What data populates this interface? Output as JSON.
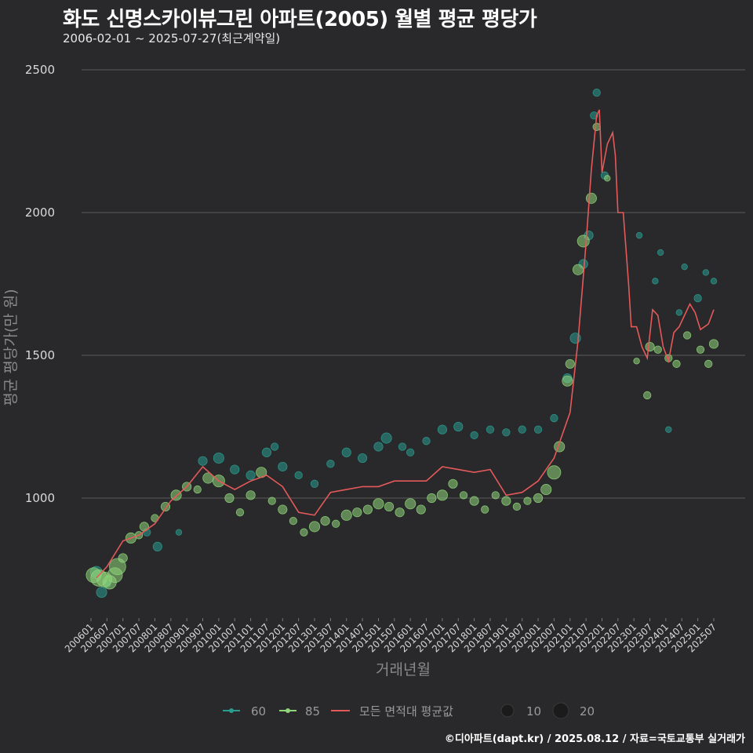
{
  "title": "화도 신명스카이뷰그린 아파트(2005) 월별 평균 평당가",
  "subtitle": "2006-02-01 ~ 2025-07-27(최근계약일)",
  "caption": "©디아파트(dapt.kr) / 2025.08.12 / 자료=국토교통부 실거래가",
  "colors": {
    "background": "#29282a",
    "grid": "#5c5c5c",
    "series_60": "#2a9d8f",
    "series_85": "#8fd67a",
    "avg_line": "#e45a5a"
  },
  "chart_data": {
    "type": "scatter",
    "title": "화도 신명스카이뷰그린 아파트(2005) 월별 평균 평당가",
    "xlabel": "거래년월",
    "ylabel": "평균 평당가(만 원)",
    "ylim": [
      600,
      2550
    ],
    "yticks": [
      1000,
      1500,
      2000,
      2500
    ],
    "xticks": [
      "200601",
      "200607",
      "200701",
      "200707",
      "200801",
      "200807",
      "200901",
      "200907",
      "201001",
      "201007",
      "201101",
      "201107",
      "201201",
      "201207",
      "201301",
      "201307",
      "201401",
      "201407",
      "201501",
      "201507",
      "201601",
      "201607",
      "201701",
      "201707",
      "201801",
      "201807",
      "201901",
      "201907",
      "202001",
      "202007",
      "202101",
      "202107",
      "202201",
      "202207",
      "202301",
      "202307",
      "202401",
      "202407",
      "202501",
      "202507"
    ],
    "legend": {
      "series": [
        {
          "name": "60",
          "type": "point"
        },
        {
          "name": "85",
          "type": "point"
        },
        {
          "name": "모든 면적대 평균값",
          "type": "line"
        }
      ],
      "sizes": [
        "10",
        "20"
      ]
    },
    "avg_line": {
      "name": "모든 면적대 평균값",
      "x": [
        "200603",
        "200607",
        "200701",
        "200707",
        "200801",
        "200807",
        "200901",
        "200907",
        "201001",
        "201007",
        "201101",
        "201107",
        "201201",
        "201207",
        "201301",
        "201307",
        "201401",
        "201407",
        "201501",
        "201507",
        "201601",
        "201607",
        "201701",
        "201707",
        "201801",
        "201807",
        "201901",
        "201907",
        "202001",
        "202007",
        "202101",
        "202104",
        "202107",
        "202109",
        "202111",
        "202112",
        "202201",
        "202203",
        "202205",
        "202206",
        "202207",
        "202209",
        "202211",
        "202212",
        "202302",
        "202304",
        "202306",
        "202308",
        "202310",
        "202312",
        "202402",
        "202404",
        "202406",
        "202408",
        "202410",
        "202412",
        "202502",
        "202505",
        "202507"
      ],
      "values": [
        720,
        760,
        850,
        870,
        910,
        990,
        1040,
        1110,
        1060,
        1030,
        1060,
        1080,
        1040,
        950,
        940,
        1020,
        1030,
        1040,
        1040,
        1060,
        1060,
        1060,
        1110,
        1100,
        1090,
        1100,
        1010,
        1020,
        1060,
        1140,
        1300,
        1550,
        1890,
        2150,
        2340,
        2360,
        2140,
        2240,
        2280,
        2200,
        2000,
        2000,
        1750,
        1600,
        1600,
        1530,
        1490,
        1660,
        1640,
        1530,
        1480,
        1580,
        1600,
        1640,
        1680,
        1650,
        1590,
        1610,
        1660
      ]
    },
    "series": [
      {
        "name": "60",
        "points": [
          {
            "x": "200603",
            "y": 740,
            "size": 8
          },
          {
            "x": "200605",
            "y": 670,
            "size": 7
          },
          {
            "x": "200607",
            "y": 700,
            "size": 5
          },
          {
            "x": "200710",
            "y": 880,
            "size": 5
          },
          {
            "x": "200802",
            "y": 830,
            "size": 6
          },
          {
            "x": "200810",
            "y": 880,
            "size": 4
          },
          {
            "x": "200907",
            "y": 1130,
            "size": 6
          },
          {
            "x": "201001",
            "y": 1140,
            "size": 7
          },
          {
            "x": "201007",
            "y": 1100,
            "size": 6
          },
          {
            "x": "201101",
            "y": 1080,
            "size": 6
          },
          {
            "x": "201107",
            "y": 1160,
            "size": 6
          },
          {
            "x": "201110",
            "y": 1180,
            "size": 5
          },
          {
            "x": "201201",
            "y": 1110,
            "size": 6
          },
          {
            "x": "201207",
            "y": 1080,
            "size": 5
          },
          {
            "x": "201301",
            "y": 1050,
            "size": 5
          },
          {
            "x": "201307",
            "y": 1120,
            "size": 5
          },
          {
            "x": "201401",
            "y": 1160,
            "size": 6
          },
          {
            "x": "201407",
            "y": 1140,
            "size": 6
          },
          {
            "x": "201501",
            "y": 1180,
            "size": 6
          },
          {
            "x": "201504",
            "y": 1210,
            "size": 7
          },
          {
            "x": "201510",
            "y": 1180,
            "size": 5
          },
          {
            "x": "201601",
            "y": 1160,
            "size": 5
          },
          {
            "x": "201607",
            "y": 1200,
            "size": 5
          },
          {
            "x": "201701",
            "y": 1240,
            "size": 6
          },
          {
            "x": "201707",
            "y": 1250,
            "size": 6
          },
          {
            "x": "201801",
            "y": 1220,
            "size": 5
          },
          {
            "x": "201807",
            "y": 1240,
            "size": 5
          },
          {
            "x": "201901",
            "y": 1230,
            "size": 5
          },
          {
            "x": "201907",
            "y": 1240,
            "size": 5
          },
          {
            "x": "202001",
            "y": 1240,
            "size": 5
          },
          {
            "x": "202007",
            "y": 1280,
            "size": 5
          },
          {
            "x": "202012",
            "y": 1420,
            "size": 6
          },
          {
            "x": "202103",
            "y": 1560,
            "size": 7
          },
          {
            "x": "202106",
            "y": 1820,
            "size": 6
          },
          {
            "x": "202108",
            "y": 1920,
            "size": 6
          },
          {
            "x": "202110",
            "y": 2340,
            "size": 5
          },
          {
            "x": "202111",
            "y": 2420,
            "size": 5
          },
          {
            "x": "202202",
            "y": 2130,
            "size": 5
          },
          {
            "x": "202303",
            "y": 1920,
            "size": 4
          },
          {
            "x": "202309",
            "y": 1760,
            "size": 4
          },
          {
            "x": "202311",
            "y": 1860,
            "size": 4
          },
          {
            "x": "202402",
            "y": 1240,
            "size": 4
          },
          {
            "x": "202406",
            "y": 1650,
            "size": 4
          },
          {
            "x": "202408",
            "y": 1810,
            "size": 4
          },
          {
            "x": "202501",
            "y": 1700,
            "size": 5
          },
          {
            "x": "202504",
            "y": 1790,
            "size": 4
          },
          {
            "x": "202507",
            "y": 1760,
            "size": 4
          }
        ]
      },
      {
        "name": "85",
        "points": [
          {
            "x": "200602",
            "y": 730,
            "size": 10
          },
          {
            "x": "200604",
            "y": 720,
            "size": 11
          },
          {
            "x": "200606",
            "y": 715,
            "size": 10
          },
          {
            "x": "200608",
            "y": 705,
            "size": 9
          },
          {
            "x": "200610",
            "y": 730,
            "size": 10
          },
          {
            "x": "200611",
            "y": 760,
            "size": 11
          },
          {
            "x": "200701",
            "y": 790,
            "size": 6
          },
          {
            "x": "200704",
            "y": 860,
            "size": 7
          },
          {
            "x": "200707",
            "y": 870,
            "size": 5
          },
          {
            "x": "200709",
            "y": 900,
            "size": 6
          },
          {
            "x": "200801",
            "y": 930,
            "size": 5
          },
          {
            "x": "200805",
            "y": 970,
            "size": 6
          },
          {
            "x": "200809",
            "y": 1010,
            "size": 7
          },
          {
            "x": "200901",
            "y": 1040,
            "size": 6
          },
          {
            "x": "200905",
            "y": 1030,
            "size": 5
          },
          {
            "x": "200909",
            "y": 1070,
            "size": 7
          },
          {
            "x": "201001",
            "y": 1060,
            "size": 8
          },
          {
            "x": "201005",
            "y": 1000,
            "size": 6
          },
          {
            "x": "201009",
            "y": 950,
            "size": 5
          },
          {
            "x": "201101",
            "y": 1010,
            "size": 6
          },
          {
            "x": "201105",
            "y": 1090,
            "size": 7
          },
          {
            "x": "201109",
            "y": 990,
            "size": 5
          },
          {
            "x": "201201",
            "y": 960,
            "size": 6
          },
          {
            "x": "201205",
            "y": 920,
            "size": 5
          },
          {
            "x": "201209",
            "y": 880,
            "size": 5
          },
          {
            "x": "201301",
            "y": 900,
            "size": 7
          },
          {
            "x": "201305",
            "y": 920,
            "size": 6
          },
          {
            "x": "201309",
            "y": 910,
            "size": 5
          },
          {
            "x": "201401",
            "y": 940,
            "size": 7
          },
          {
            "x": "201405",
            "y": 950,
            "size": 6
          },
          {
            "x": "201409",
            "y": 960,
            "size": 6
          },
          {
            "x": "201501",
            "y": 980,
            "size": 7
          },
          {
            "x": "201505",
            "y": 970,
            "size": 6
          },
          {
            "x": "201509",
            "y": 950,
            "size": 6
          },
          {
            "x": "201601",
            "y": 980,
            "size": 7
          },
          {
            "x": "201605",
            "y": 960,
            "size": 6
          },
          {
            "x": "201609",
            "y": 1000,
            "size": 6
          },
          {
            "x": "201701",
            "y": 1010,
            "size": 7
          },
          {
            "x": "201705",
            "y": 1050,
            "size": 6
          },
          {
            "x": "201709",
            "y": 1010,
            "size": 5
          },
          {
            "x": "201801",
            "y": 990,
            "size": 6
          },
          {
            "x": "201805",
            "y": 960,
            "size": 5
          },
          {
            "x": "201809",
            "y": 1010,
            "size": 5
          },
          {
            "x": "201901",
            "y": 990,
            "size": 6
          },
          {
            "x": "201905",
            "y": 970,
            "size": 5
          },
          {
            "x": "201909",
            "y": 990,
            "size": 5
          },
          {
            "x": "202001",
            "y": 1000,
            "size": 6
          },
          {
            "x": "202004",
            "y": 1030,
            "size": 7
          },
          {
            "x": "202007",
            "y": 1090,
            "size": 9
          },
          {
            "x": "202009",
            "y": 1180,
            "size": 7
          },
          {
            "x": "202012",
            "y": 1410,
            "size": 7
          },
          {
            "x": "202101",
            "y": 1470,
            "size": 6
          },
          {
            "x": "202104",
            "y": 1800,
            "size": 7
          },
          {
            "x": "202106",
            "y": 1900,
            "size": 8
          },
          {
            "x": "202109",
            "y": 2050,
            "size": 7
          },
          {
            "x": "202111",
            "y": 2300,
            "size": 5
          },
          {
            "x": "202203",
            "y": 2120,
            "size": 4
          },
          {
            "x": "202302",
            "y": 1480,
            "size": 4
          },
          {
            "x": "202306",
            "y": 1360,
            "size": 5
          },
          {
            "x": "202307",
            "y": 1530,
            "size": 6
          },
          {
            "x": "202310",
            "y": 1520,
            "size": 5
          },
          {
            "x": "202402",
            "y": 1490,
            "size": 5
          },
          {
            "x": "202405",
            "y": 1470,
            "size": 5
          },
          {
            "x": "202409",
            "y": 1570,
            "size": 5
          },
          {
            "x": "202502",
            "y": 1520,
            "size": 5
          },
          {
            "x": "202505",
            "y": 1470,
            "size": 5
          },
          {
            "x": "202507",
            "y": 1540,
            "size": 6
          }
        ]
      }
    ]
  }
}
